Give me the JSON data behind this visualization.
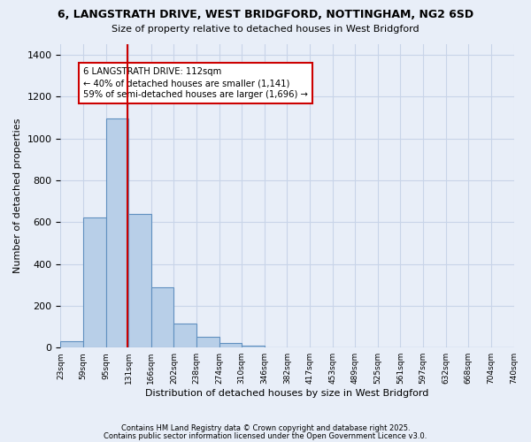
{
  "title1": "6, LANGSTRATH DRIVE, WEST BRIDGFORD, NOTTINGHAM, NG2 6SD",
  "title2": "Size of property relative to detached houses in West Bridgford",
  "xlabel": "Distribution of detached houses by size in West Bridgford",
  "ylabel": "Number of detached properties",
  "bar_counts": [
    30,
    620,
    1095,
    640,
    290,
    115,
    50,
    20,
    10,
    0,
    0,
    0,
    0,
    0,
    0,
    0,
    0,
    0,
    0,
    0
  ],
  "bin_labels": [
    "23sqm",
    "59sqm",
    "95sqm",
    "131sqm",
    "166sqm",
    "202sqm",
    "238sqm",
    "274sqm",
    "310sqm",
    "346sqm",
    "382sqm",
    "417sqm",
    "453sqm",
    "489sqm",
    "525sqm",
    "561sqm",
    "597sqm",
    "632sqm",
    "668sqm",
    "704sqm",
    "740sqm"
  ],
  "bar_color": "#b8cfe8",
  "bar_edge_color": "#6090c0",
  "grid_color": "#c8d4e8",
  "bg_color": "#e8eef8",
  "vline_bin": 2.47,
  "vline_color": "#cc0000",
  "annotation_text": "6 LANGSTRATH DRIVE: 112sqm\n← 40% of detached houses are smaller (1,141)\n59% of semi-detached houses are larger (1,696) →",
  "annotation_box_color": "#ffffff",
  "annotation_box_edge": "#cc0000",
  "ylim": [
    0,
    1450
  ],
  "yticks": [
    0,
    200,
    400,
    600,
    800,
    1000,
    1200,
    1400
  ],
  "footer1": "Contains HM Land Registry data © Crown copyright and database right 2025.",
  "footer2": "Contains public sector information licensed under the Open Government Licence v3.0."
}
